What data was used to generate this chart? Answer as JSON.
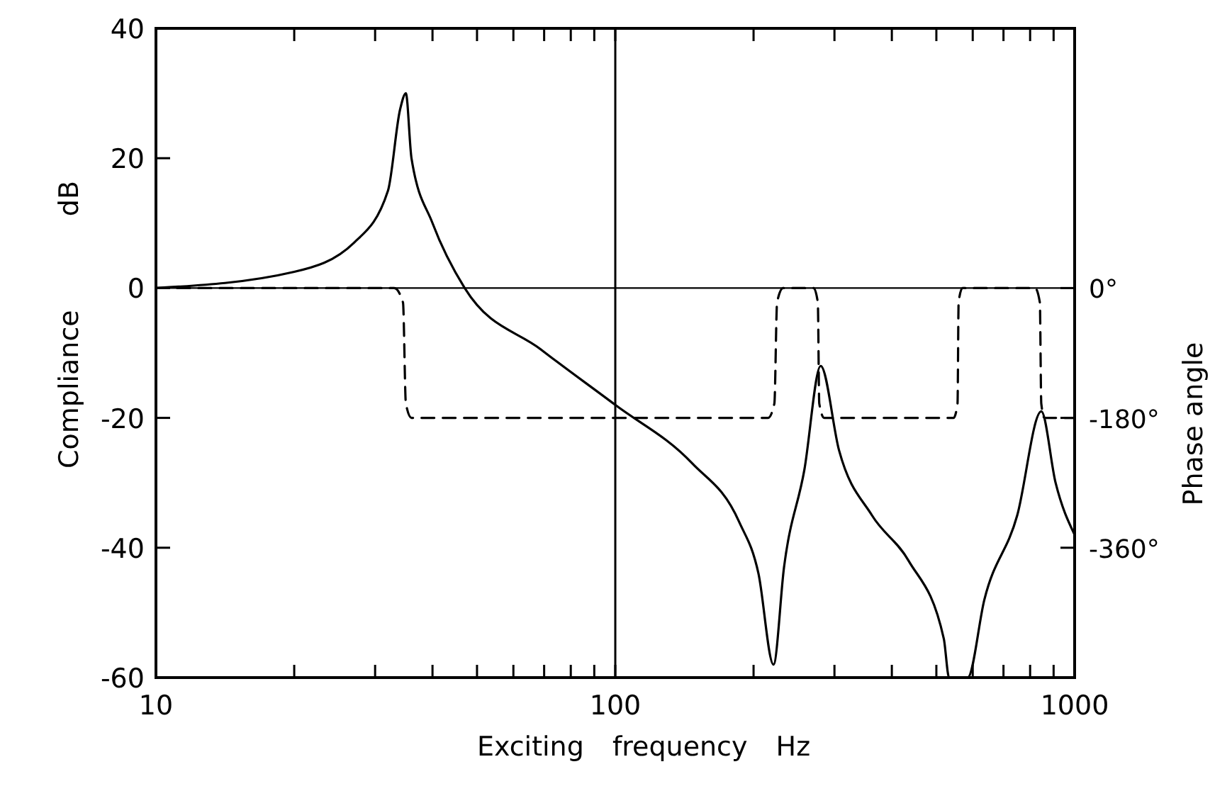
{
  "chart_data": {
    "type": "line",
    "xlabel": "Exciting frequency Hz",
    "ylabel": "Compliance dB",
    "y2label": "Phase angle",
    "log": "x",
    "grid": false,
    "xlim": [
      10,
      1000
    ],
    "xticks": [
      10,
      {
        "value": 20,
        "label": null
      },
      {
        "value": 30,
        "label": null
      },
      {
        "value": 40,
        "label": null
      },
      {
        "value": 50,
        "label": null
      },
      {
        "value": 60,
        "label": null
      },
      {
        "value": 70,
        "label": null
      },
      {
        "value": 80,
        "label": null
      },
      {
        "value": 90,
        "label": null
      },
      100,
      {
        "value": 200,
        "label": null
      },
      {
        "value": 300,
        "label": null
      },
      {
        "value": 400,
        "label": null
      },
      {
        "value": 500,
        "label": null
      },
      {
        "value": 600,
        "label": null
      },
      {
        "value": 700,
        "label": null
      },
      {
        "value": 800,
        "label": null
      },
      {
        "value": 900,
        "label": null
      },
      1000
    ],
    "ylim": [
      -60,
      40
    ],
    "yticks": [
      -60,
      -40,
      -20,
      0,
      20,
      40
    ],
    "y2lim": [
      -540,
      360
    ],
    "y2ticks": [
      {
        "value": -360,
        "label": "-360°"
      },
      {
        "value": -180,
        "label": "-180°"
      },
      {
        "value": 0,
        "label": "0°"
      }
    ],
    "ref_lines": [
      {
        "axis": "y",
        "value": 0,
        "color": "#000000"
      },
      {
        "axis": "x",
        "value": 100,
        "color": "#000000"
      }
    ],
    "series": [
      {
        "color": "#000000",
        "line_style": "solid",
        "x": [
          10,
          20,
          27,
          32,
          34,
          35,
          36,
          40,
          47,
          69,
          100,
          147,
          186,
          205,
          221,
          233,
          258,
          280,
          307,
          362,
          435,
          519,
          533,
          585,
          636,
          750,
          846,
          909,
          1000
        ],
        "values": [
          0,
          2.5,
          7,
          15,
          27.5,
          30,
          20,
          10,
          0,
          -9.5,
          -18,
          -27,
          -36,
          -44,
          -58,
          -43,
          -28,
          -12,
          -25,
          -35,
          -42,
          -54,
          -60,
          -60,
          -48,
          -35,
          -19,
          -30,
          -38
        ]
      },
      {
        "color": "#000000",
        "line_style": "dashed",
        "axis": "y2",
        "x": [
          10,
          33,
          34.5,
          35,
          36,
          215,
          222,
          225,
          232,
          270,
          276,
          278,
          285,
          545,
          556,
          559,
          570,
          820,
          840,
          846,
          860,
          1000
        ],
        "values": [
          0,
          0,
          -20,
          -160,
          -180,
          -180,
          -160,
          -20,
          0,
          0,
          -20,
          -160,
          -180,
          -180,
          -160,
          -20,
          0,
          0,
          -20,
          -160,
          -180,
          -180
        ]
      }
    ]
  }
}
